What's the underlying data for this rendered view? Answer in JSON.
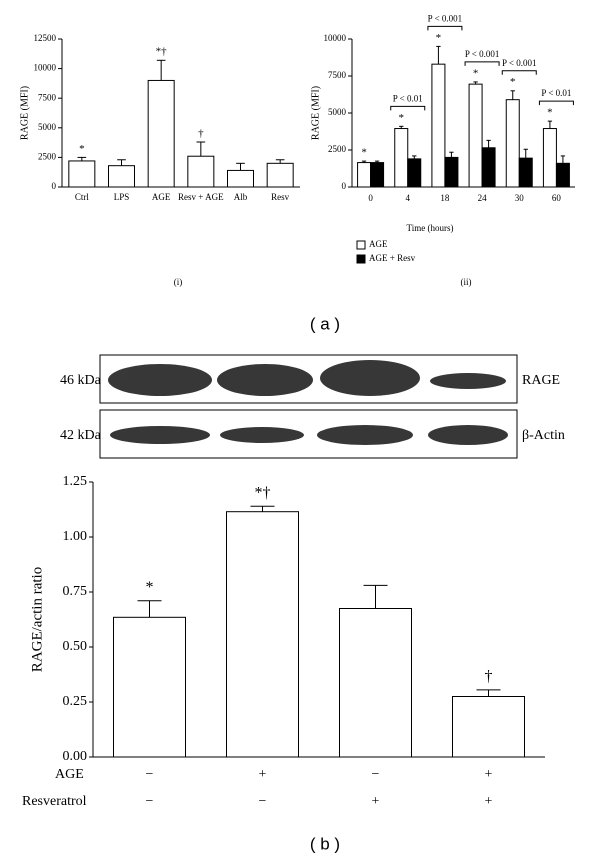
{
  "figure": {
    "panel_a": "( a )",
    "panel_b": "( b )",
    "blot": {
      "bands": [
        {
          "size": "46 kDa",
          "label": "RAGE"
        },
        {
          "size": "42 kDa",
          "label": "β-Actin"
        }
      ]
    }
  },
  "chart_data": [
    {
      "type": "bar",
      "caption": "(i)",
      "ylabel": "RAGE (MFI)",
      "categories": [
        "Ctrl",
        "LPS",
        "AGE",
        "Resv + AGE",
        "Alb",
        "Resv"
      ],
      "values": [
        2200,
        1800,
        9000,
        2600,
        1400,
        2000
      ],
      "errors": [
        300,
        500,
        1700,
        1200,
        600,
        300
      ],
      "annotations": [
        "*",
        null,
        "*†",
        "†",
        null,
        null
      ],
      "color": "#ffffff",
      "ylim": [
        0,
        12500
      ],
      "yticks": [
        0,
        2500,
        5000,
        7500,
        10000,
        12500
      ]
    },
    {
      "type": "grouped-bar",
      "caption": "(ii)",
      "ylabel": "RAGE (MFI)",
      "xlabel": "Time (hours)",
      "categories": [
        "0",
        "4",
        "18",
        "24",
        "30",
        "60"
      ],
      "series": [
        {
          "name": "AGE",
          "color": "#ffffff",
          "values": [
            1650,
            3950,
            8300,
            6950,
            5900,
            3950
          ],
          "errors": [
            100,
            150,
            1200,
            150,
            600,
            500
          ],
          "annotations": [
            "*",
            "*",
            "*",
            "*",
            "*",
            "*"
          ]
        },
        {
          "name": "AGE + Resv",
          "color": "#000000",
          "values": [
            1650,
            1900,
            2000,
            2650,
            1950,
            1600
          ],
          "errors": [
            100,
            200,
            350,
            500,
            600,
            500
          ]
        }
      ],
      "comparisons": [
        null,
        "P < 0.01",
        "P < 0.001",
        "P < 0.001",
        "P < 0.001",
        "P < 0.01"
      ],
      "ylim": [
        0,
        10000
      ],
      "yticks": [
        0,
        2500,
        5000,
        7500,
        10000
      ]
    },
    {
      "type": "bar",
      "ylabel": "RAGE/actin ratio",
      "values": [
        0.635,
        1.115,
        0.675,
        0.275
      ],
      "errors": [
        0.075,
        0.025,
        0.105,
        0.03
      ],
      "annotations": [
        "*",
        "*†",
        null,
        "†"
      ],
      "color": "#ffffff",
      "rows": [
        {
          "label": "AGE",
          "values": [
            "−",
            "+",
            "−",
            "+"
          ]
        },
        {
          "label": "Resveratrol",
          "values": [
            "−",
            "−",
            "+",
            "+"
          ]
        }
      ],
      "ylim": [
        0,
        1.25
      ],
      "yticks": [
        {
          "value": 0,
          "label": "0.00"
        },
        {
          "value": 0.25,
          "label": "0.25"
        },
        {
          "value": 0.5,
          "label": "0.50"
        },
        {
          "value": 0.75,
          "label": "0.75"
        },
        {
          "value": 1,
          "label": "1.00"
        },
        {
          "value": 1.25,
          "label": "1.25"
        }
      ]
    }
  ]
}
